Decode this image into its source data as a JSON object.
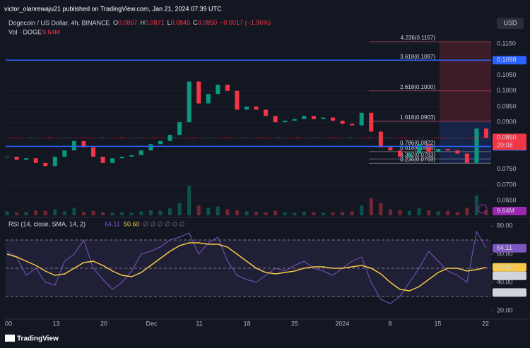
{
  "header": {
    "publisher": "victor_olanrewaju21 published on TradingView.com, Jan 21, 2024 07:39 UTC",
    "symbol": "Dogecoin / US Dollar, 4h, BINANCE",
    "ohlc": [
      {
        "key": "O",
        "value": "0.0867"
      },
      {
        "key": "H",
        "value": "0.0871"
      },
      {
        "key": "L",
        "value": "0.0845"
      },
      {
        "key": "C",
        "value": "0.0850"
      }
    ],
    "change": "−0.0017 (−1.96%)",
    "volume_label": "Vol · DOGE",
    "volume_value": "9.64M",
    "currency": "USD"
  },
  "footer": {
    "brand": "TradingView"
  },
  "time_axis": [
    "00",
    "13",
    "20",
    "Dec",
    "11",
    "18",
    "25",
    "2024",
    "8",
    "15",
    "22"
  ],
  "chart_data": [
    {
      "type": "candlestick",
      "up_color": "#089981",
      "down_color": "#f23645",
      "values": [
        0.079,
        0.078,
        0.0785,
        0.077,
        0.076,
        0.079,
        0.081,
        0.084,
        0.082,
        0.079,
        0.077,
        0.0785,
        0.079,
        0.0795,
        0.081,
        0.083,
        0.084,
        0.086,
        0.09,
        0.103,
        0.096,
        0.099,
        0.102,
        0.1,
        0.094,
        0.095,
        0.094,
        0.092,
        0.09,
        0.0905,
        0.091,
        0.092,
        0.091,
        0.0915,
        0.0905,
        0.0895,
        0.089,
        0.093,
        0.087,
        0.082,
        0.081,
        0.079,
        0.08,
        0.083,
        0.0805,
        0.0815,
        0.081,
        0.08,
        0.077,
        0.088,
        0.085
      ],
      "volume": [
        8,
        6,
        7,
        10,
        9,
        12,
        8,
        15,
        7,
        9,
        6,
        5,
        6,
        5,
        8,
        10,
        9,
        14,
        25,
        60,
        20,
        15,
        18,
        12,
        10,
        8,
        7,
        6,
        9,
        6,
        5,
        7,
        6,
        5,
        6,
        7,
        8,
        20,
        35,
        25,
        12,
        10,
        9,
        14,
        10,
        8,
        9,
        7,
        15,
        40,
        9.64
      ],
      "volume_lim": [
        0,
        100
      ],
      "ylim": [
        0.0603,
        0.1245
      ],
      "yticks": [
        {
          "value": 0.115,
          "label": "0.1150"
        },
        {
          "value": 0.105,
          "label": "0.1050"
        },
        {
          "value": 0.1,
          "label": "0.1000"
        },
        {
          "value": 0.095,
          "label": "0.0950"
        },
        {
          "value": 0.09,
          "label": "0.0900"
        },
        {
          "value": 0.075,
          "label": "0.0750"
        },
        {
          "value": 0.07,
          "label": "0.0700"
        },
        {
          "value": 0.065,
          "label": "0.0650"
        }
      ],
      "levels": [
        {
          "value": 0.1098,
          "label": "0.1098",
          "color": "#2962ff"
        },
        {
          "value": 0.0823,
          "label": "0.0823",
          "color": "#2962ff"
        }
      ],
      "last_price": {
        "value": 0.085,
        "label": "0.0850",
        "countdown": "20:08",
        "color": "#f23645"
      },
      "fib": [
        {
          "value": 0.1157,
          "label": "4.236(0.1157)"
        },
        {
          "value": 0.1097,
          "label": "3.618(0.1097)"
        },
        {
          "value": 0.1,
          "label": "2.618(0.1000)"
        },
        {
          "value": 0.0903,
          "label": "1.618(0.0903)"
        },
        {
          "value": 0.0822,
          "label": "0.786(0.0822)"
        },
        {
          "value": 0.0806,
          "label": "0.618(0.0806)"
        },
        {
          "value": 0.0783,
          "label": "0.382(0.0783)"
        },
        {
          "value": 0.0769,
          "label": "0.236(0.0769)"
        }
      ]
    },
    {
      "type": "line",
      "title": "RSI (14, close, SMA, 14, 2)",
      "header_values": [
        {
          "value": 64.11,
          "label": "64.11"
        },
        {
          "value": 50.6,
          "label": "50.60"
        }
      ],
      "flags": "∅ ∅ ∅ ∅ ∅ ∅",
      "series": [
        {
          "name": "RSI",
          "color": "#7e57c2",
          "values": [
            62,
            58,
            45,
            50,
            40,
            38,
            55,
            60,
            70,
            50,
            42,
            35,
            40,
            48,
            60,
            62,
            65,
            70,
            72,
            75,
            60,
            68,
            72,
            55,
            45,
            42,
            40,
            45,
            50,
            48,
            52,
            55,
            50,
            48,
            45,
            50,
            55,
            58,
            40,
            28,
            25,
            30,
            40,
            50,
            62,
            55,
            48,
            45,
            40,
            76,
            64.11
          ]
        },
        {
          "name": "SMA",
          "color": "#f7c948",
          "values": [
            60,
            58,
            55,
            52,
            48,
            45,
            46,
            50,
            54,
            55,
            52,
            48,
            45,
            44,
            47,
            52,
            57,
            62,
            66,
            68,
            68,
            67,
            67,
            65,
            60,
            55,
            50,
            47,
            46,
            47,
            48,
            50,
            51,
            51,
            50,
            50,
            51,
            52,
            50,
            46,
            40,
            35,
            34,
            37,
            42,
            47,
            50,
            50,
            48,
            49,
            50.6
          ]
        }
      ],
      "ylim": [
        15,
        84
      ],
      "yticks": [
        {
          "value": 80,
          "label": "80.00"
        },
        {
          "value": 60,
          "label": "60.00"
        },
        {
          "value": 40,
          "label": "40.00"
        },
        {
          "value": 20,
          "label": "20.00"
        }
      ],
      "bands": [
        30,
        50,
        70
      ],
      "badges": [
        {
          "value": 64.11,
          "label": "64.11",
          "color": "#7e57c2"
        },
        {
          "value": 50.6,
          "label": "50.60",
          "color": "#f7c948"
        },
        {
          "value": 50.57,
          "label": "50.57",
          "color": "#d1d4dc"
        },
        {
          "value": 32.82,
          "label": "32.82",
          "color": "#d1d4dc"
        }
      ]
    }
  ]
}
